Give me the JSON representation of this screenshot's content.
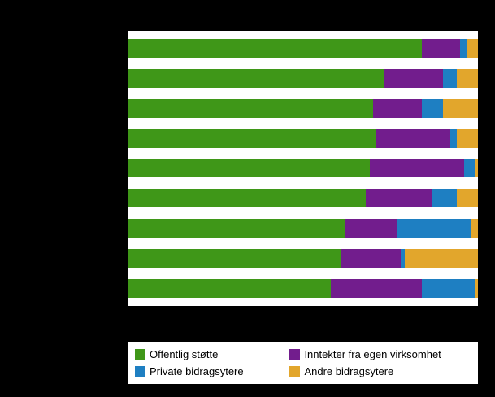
{
  "chart_data": {
    "type": "bar",
    "orientation": "horizontal",
    "stacked": true,
    "title": "",
    "xlabel": "",
    "ylabel": "",
    "xlim": [
      0,
      100
    ],
    "grid": false,
    "legend_position": "bottom",
    "categories": [
      "",
      "",
      "",
      "",
      "",
      "",
      "",
      "",
      ""
    ],
    "series": [
      {
        "name": "Offentlig støtte",
        "color": "#3f9718",
        "values": [
          84,
          73,
          70,
          71,
          69,
          68,
          62,
          61,
          58
        ]
      },
      {
        "name": "Inntekter fra egen virksomhet",
        "color": "#721d8d",
        "values": [
          11,
          17,
          14,
          21,
          27,
          19,
          15,
          17,
          26
        ]
      },
      {
        "name": "Private bidragsytere",
        "color": "#1e7fc2",
        "values": [
          2,
          4,
          6,
          2,
          3,
          7,
          21,
          1,
          15
        ]
      },
      {
        "name": "Andre bidragsytere",
        "color": "#e2a62c",
        "values": [
          3,
          6,
          10,
          6,
          1,
          6,
          2,
          21,
          1
        ]
      }
    ]
  },
  "legend": {
    "items": [
      {
        "label": "Offentlig støtte",
        "color": "#3f9718"
      },
      {
        "label": "Inntekter fra egen virksomhet",
        "color": "#721d8d"
      },
      {
        "label": "Private bidragsytere",
        "color": "#1e7fc2"
      },
      {
        "label": "Andre bidragsytere",
        "color": "#e2a62c"
      }
    ]
  }
}
